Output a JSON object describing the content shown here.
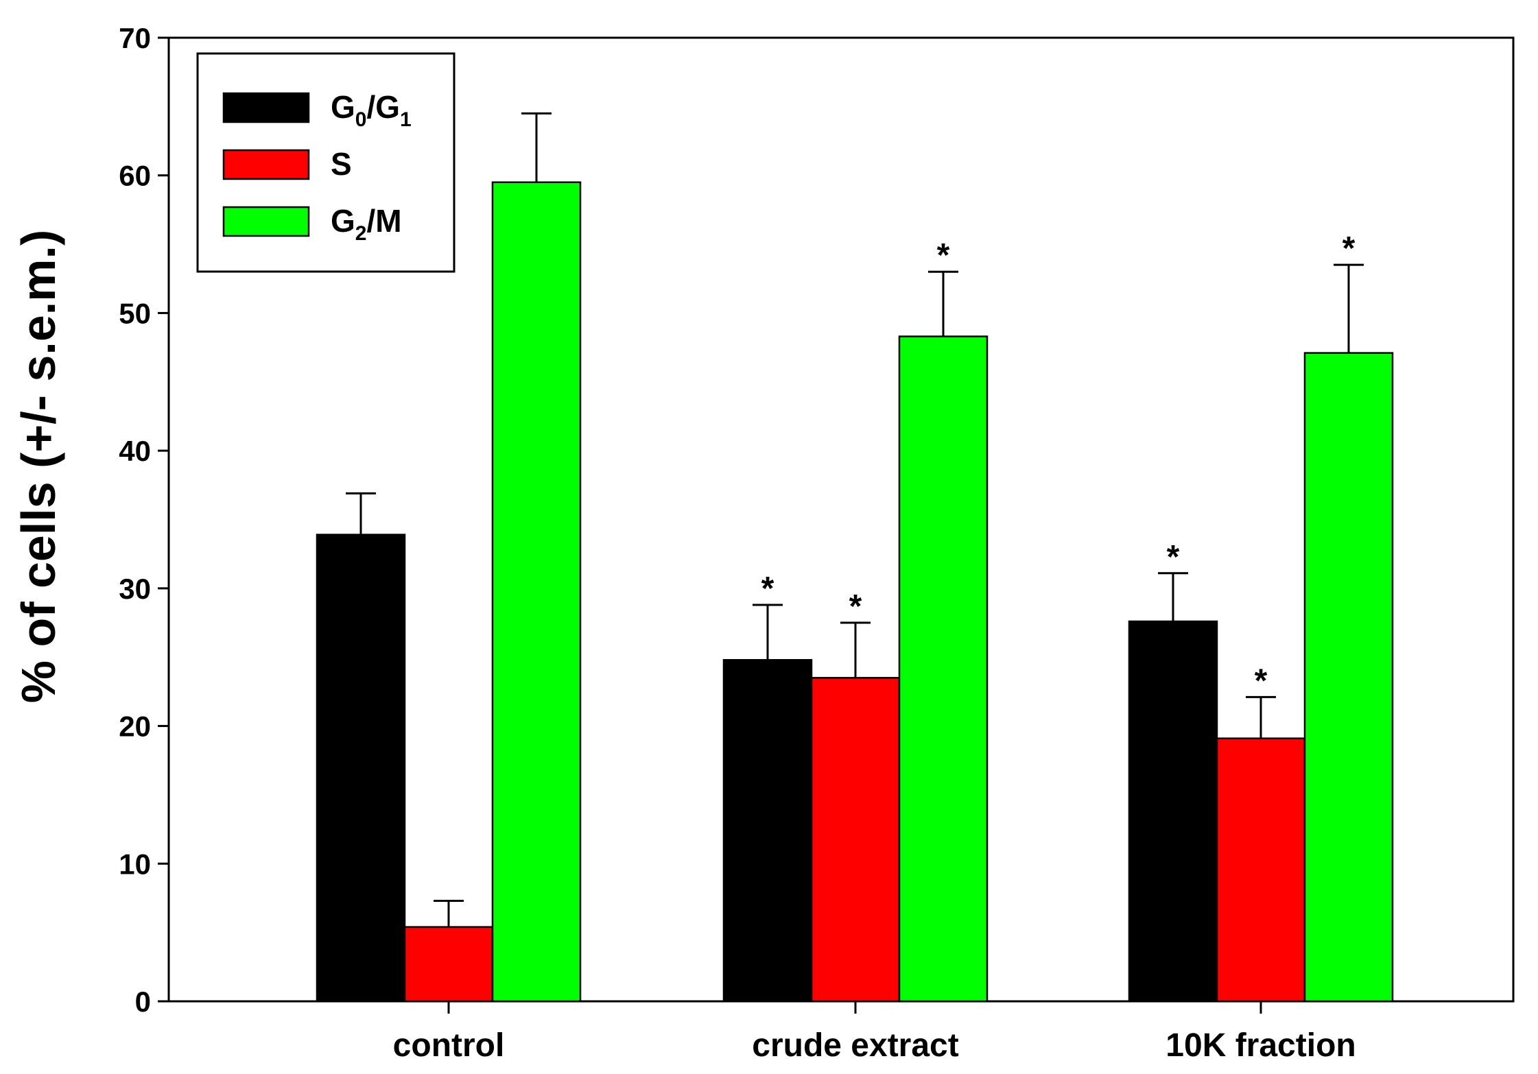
{
  "chart_data": {
    "type": "bar",
    "title": "",
    "xlabel": "",
    "ylabel": "% of cells (+/- s.e.m.)",
    "ylim": [
      0,
      70
    ],
    "yticks": [
      0,
      10,
      20,
      30,
      40,
      50,
      60,
      70
    ],
    "ytick_labels": [
      "0",
      "10",
      "20",
      "30",
      "40",
      "50",
      "60",
      "70"
    ],
    "grid": false,
    "legend_position": "top-left",
    "categories": [
      "control",
      "crude extract",
      "10K fraction"
    ],
    "series": [
      {
        "name": "G0/G1",
        "label_main": "G",
        "label_sub1": "0",
        "label_mid": "/G",
        "label_sub2": "1",
        "color": "#000000",
        "values": [
          33.9,
          24.8,
          27.6
        ],
        "errors": [
          3.0,
          4.0,
          3.5
        ],
        "significant": [
          false,
          true,
          true
        ]
      },
      {
        "name": "S",
        "label_main": "S",
        "color": "#ff0000",
        "values": [
          5.4,
          23.5,
          19.1
        ],
        "errors": [
          1.9,
          4.0,
          3.0
        ],
        "significant": [
          false,
          true,
          true
        ]
      },
      {
        "name": "G2/M",
        "label_main": "G",
        "label_sub1": "2",
        "label_mid": "/M",
        "color": "#00ff00",
        "values": [
          59.5,
          48.3,
          47.1
        ],
        "errors": [
          5.0,
          4.7,
          6.4
        ],
        "significant": [
          false,
          true,
          true
        ]
      }
    ],
    "significance_marker": "*"
  }
}
